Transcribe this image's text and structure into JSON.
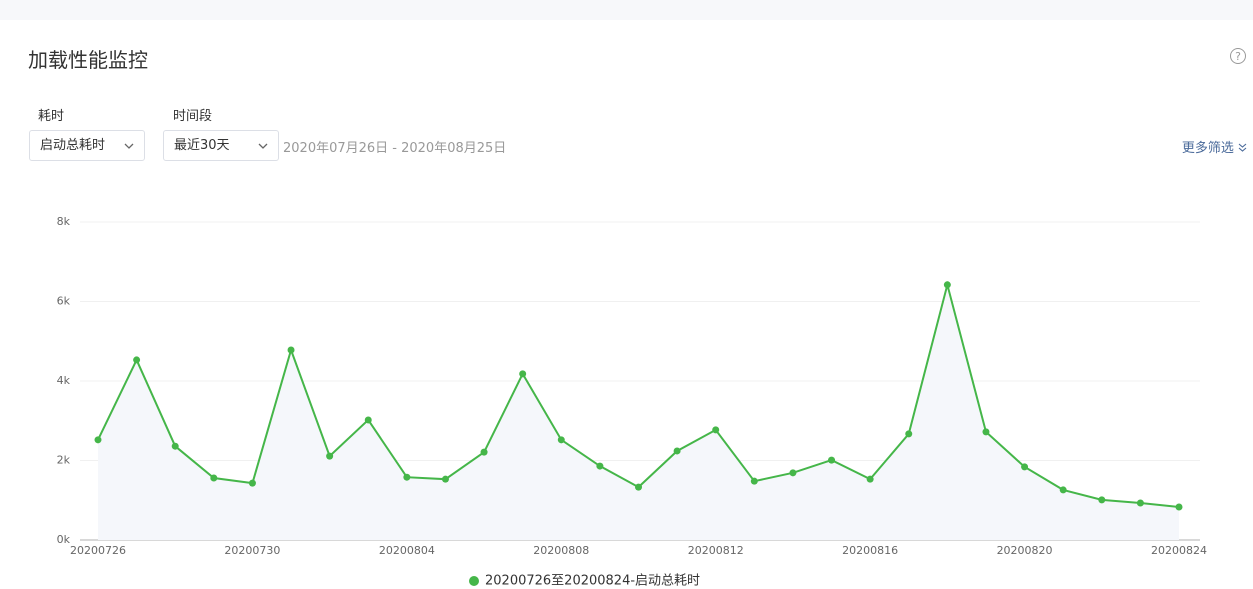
{
  "header": {
    "title": "加载性能监控"
  },
  "filters": {
    "metric": {
      "label": "耗时",
      "selected": "启动总耗时"
    },
    "period": {
      "label": "时间段",
      "selected": "最近30天"
    },
    "range": "2020年07月26日 - 2020年08月25日",
    "more": "更多筛选"
  },
  "chart_data": {
    "type": "line",
    "categories": [
      "20200726",
      null,
      null,
      null,
      "20200730",
      null,
      null,
      null,
      "20200804",
      null,
      null,
      null,
      "20200808",
      null,
      null,
      null,
      "20200812",
      null,
      null,
      null,
      "20200816",
      null,
      null,
      null,
      "20200820",
      null,
      null,
      null,
      "20200824"
    ],
    "series": [
      {
        "name": "20200726至20200824-启动总耗时",
        "color": "#45b649",
        "values": [
          2520,
          4530,
          2360,
          1560,
          1430,
          4780,
          2110,
          3020,
          1580,
          1530,
          2210,
          4180,
          2520,
          1860,
          1330,
          2240,
          2770,
          1480,
          1690,
          2010,
          1530,
          2670,
          6420,
          2720,
          1840,
          1260,
          1010,
          930,
          830
        ]
      }
    ],
    "ylim": [
      0,
      8000
    ],
    "yticks": [
      {
        "value": 0,
        "label": "0k"
      },
      {
        "value": 2000,
        "label": "2k"
      },
      {
        "value": 4000,
        "label": "4k"
      },
      {
        "value": 6000,
        "label": "6k"
      },
      {
        "value": 8000,
        "label": "8k"
      }
    ],
    "grid": true,
    "area_color": "#f5f7fb"
  }
}
